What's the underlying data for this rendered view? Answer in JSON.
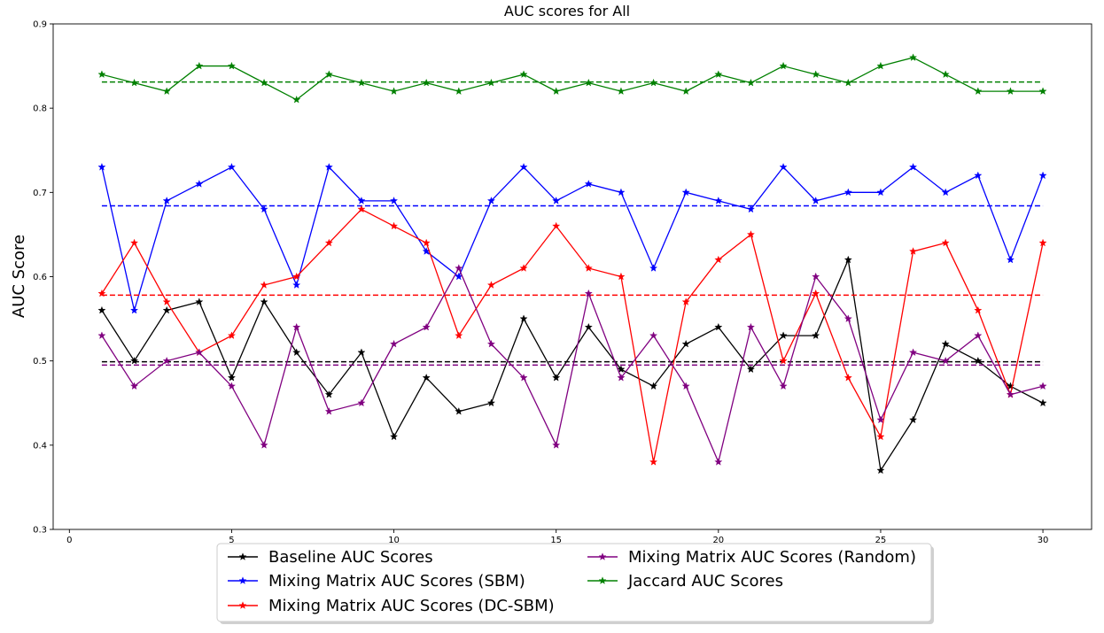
{
  "chart_data": {
    "type": "line",
    "title": "AUC scores for All",
    "xlabel": "",
    "ylabel": "AUC Score",
    "xlim": [
      -0.5,
      31.5
    ],
    "ylim": [
      0.3,
      0.9
    ],
    "xticks": [
      0,
      5,
      10,
      15,
      20,
      25,
      30
    ],
    "yticks": [
      0.3,
      0.4,
      0.5,
      0.6,
      0.7,
      0.8,
      0.9
    ],
    "grid": false,
    "legend_position": "bottom-center outside",
    "x": [
      1,
      2,
      3,
      4,
      5,
      6,
      7,
      8,
      9,
      10,
      11,
      12,
      13,
      14,
      15,
      16,
      17,
      18,
      19,
      20,
      21,
      22,
      23,
      24,
      25,
      26,
      27,
      28,
      29,
      30
    ],
    "series": [
      {
        "name": "Baseline AUC Scores",
        "color": "#000000",
        "marker": "star",
        "mean": 0.499,
        "values": [
          0.56,
          0.5,
          0.56,
          0.57,
          0.48,
          0.57,
          0.51,
          0.46,
          0.51,
          0.41,
          0.48,
          0.44,
          0.45,
          0.55,
          0.48,
          0.54,
          0.49,
          0.47,
          0.52,
          0.54,
          0.49,
          0.53,
          0.53,
          0.62,
          0.37,
          0.43,
          0.52,
          0.5,
          0.47,
          0.45
        ]
      },
      {
        "name": "Mixing Matrix AUC Scores (SBM)",
        "color": "#0000ff",
        "marker": "star",
        "mean": 0.684,
        "values": [
          0.73,
          0.56,
          0.69,
          0.71,
          0.73,
          0.68,
          0.59,
          0.73,
          0.69,
          0.69,
          0.63,
          0.6,
          0.69,
          0.73,
          0.69,
          0.71,
          0.7,
          0.61,
          0.7,
          0.69,
          0.68,
          0.73,
          0.69,
          0.7,
          0.7,
          0.73,
          0.7,
          0.72,
          0.62,
          0.72
        ]
      },
      {
        "name": "Mixing Matrix AUC Scores (DC-SBM)",
        "color": "#ff0000",
        "marker": "star",
        "mean": 0.578,
        "values": [
          0.58,
          0.64,
          0.57,
          0.51,
          0.53,
          0.59,
          0.6,
          0.64,
          0.68,
          0.66,
          0.64,
          0.53,
          0.59,
          0.61,
          0.66,
          0.61,
          0.6,
          0.38,
          0.57,
          0.62,
          0.65,
          0.5,
          0.58,
          0.48,
          0.41,
          0.63,
          0.64,
          0.56,
          0.46,
          0.64
        ]
      },
      {
        "name": "Mixing Matrix AUC Scores (Random)",
        "color": "#800080",
        "marker": "star",
        "mean": 0.495,
        "values": [
          0.53,
          0.47,
          0.5,
          0.51,
          0.47,
          0.4,
          0.54,
          0.44,
          0.45,
          0.52,
          0.54,
          0.61,
          0.52,
          0.48,
          0.4,
          0.58,
          0.48,
          0.53,
          0.47,
          0.38,
          0.54,
          0.47,
          0.6,
          0.55,
          0.43,
          0.51,
          0.5,
          0.53,
          0.46,
          0.47
        ]
      },
      {
        "name": "Jaccard AUC Scores",
        "color": "#008000",
        "marker": "star",
        "mean": 0.831,
        "values": [
          0.84,
          0.83,
          0.82,
          0.85,
          0.85,
          0.83,
          0.81,
          0.84,
          0.83,
          0.82,
          0.83,
          0.82,
          0.83,
          0.84,
          0.82,
          0.83,
          0.82,
          0.83,
          0.82,
          0.84,
          0.83,
          0.85,
          0.84,
          0.83,
          0.85,
          0.86,
          0.84,
          0.82,
          0.82,
          0.82
        ]
      }
    ],
    "legend": {
      "columns": [
        [
          "Baseline AUC Scores",
          "Mixing Matrix AUC Scores (SBM)",
          "Mixing Matrix AUC Scores (DC-SBM)"
        ],
        [
          "Mixing Matrix AUC Scores (Random)",
          "Jaccard AUC Scores"
        ]
      ]
    }
  }
}
